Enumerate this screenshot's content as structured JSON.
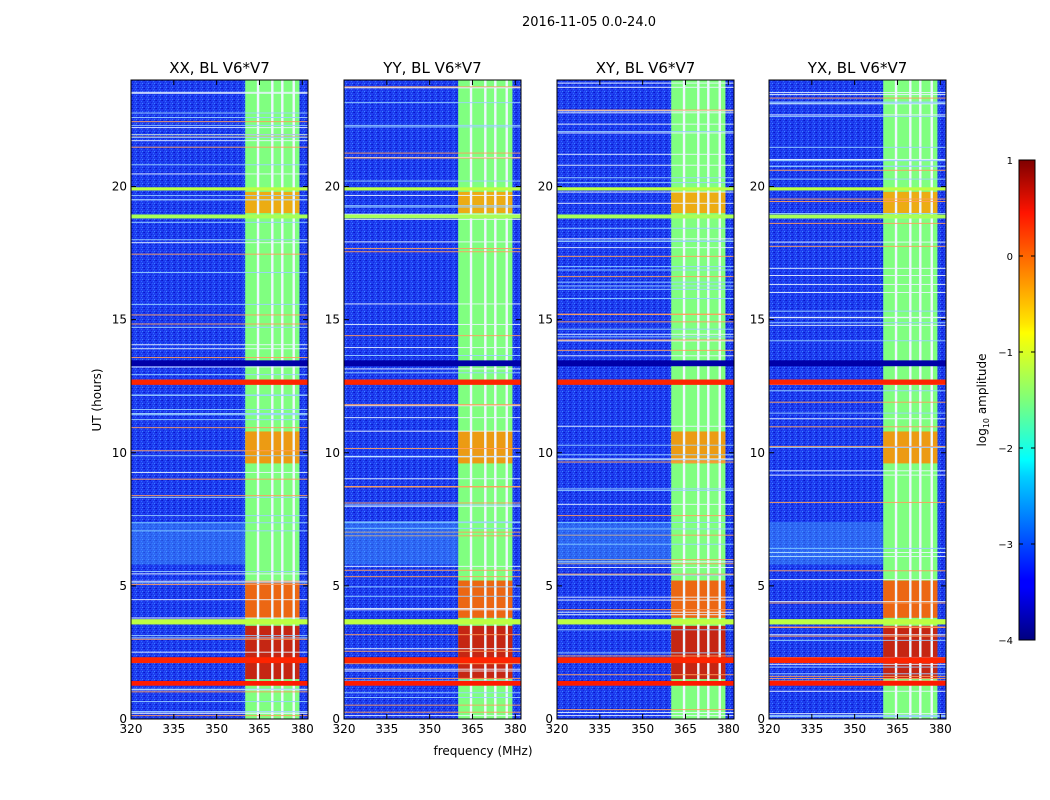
{
  "figure": {
    "suptitle": "2016-11-05 0.0-24.0"
  },
  "chart_data": {
    "type": "heatmap",
    "xlabel": "frequency (MHz)",
    "ylabel": "UT (hours)",
    "xlim": [
      320,
      382
    ],
    "ylim": [
      0,
      24
    ],
    "x_ticks": [
      320,
      335,
      350,
      365,
      380
    ],
    "y_ticks": [
      0,
      5,
      10,
      15,
      20
    ],
    "panels": [
      {
        "title": "XX, BL V6*V7"
      },
      {
        "title": "YY, BL V6*V7"
      },
      {
        "title": "XY, BL V6*V7"
      },
      {
        "title": "YX, BL V6*V7"
      }
    ],
    "colorbar": {
      "label": "log",
      "label_sub": "10",
      "label_rest": " amplitude",
      "range": [
        -4,
        1
      ],
      "ticks": [
        "1",
        "0",
        "−1",
        "−2",
        "−3",
        "−4"
      ],
      "tick_values": [
        1,
        0,
        -1,
        -2,
        -3,
        -4
      ],
      "colormap": "jet"
    },
    "rfi_band_mhz": [
      360,
      379
    ],
    "rfi_columns_mhz": [
      364.5,
      369.5,
      373,
      377
    ],
    "saturated_rows_hours": [
      {
        "t": 1.25,
        "h": 0.18,
        "level": 0.25
      },
      {
        "t": 2.1,
        "h": 0.22,
        "level": 0.2
      },
      {
        "t": 3.55,
        "h": 0.2,
        "level": -1.2
      },
      {
        "t": 12.55,
        "h": 0.2,
        "level": 0.2
      },
      {
        "t": 13.25,
        "h": 0.22,
        "level": -3.8
      },
      {
        "t": 18.8,
        "h": 0.15,
        "level": -1.3
      },
      {
        "t": 19.85,
        "h": 0.12,
        "level": -1.2
      }
    ],
    "interference_windows_hours": [
      {
        "t0": 1.5,
        "t1": 3.5,
        "level": 0.6
      },
      {
        "t0": 3.8,
        "t1": 5.2,
        "level": 0.0
      },
      {
        "t0": 9.6,
        "t1": 10.8,
        "level": -0.3
      },
      {
        "t0": 19.0,
        "t1": 19.8,
        "level": -0.4
      }
    ]
  }
}
